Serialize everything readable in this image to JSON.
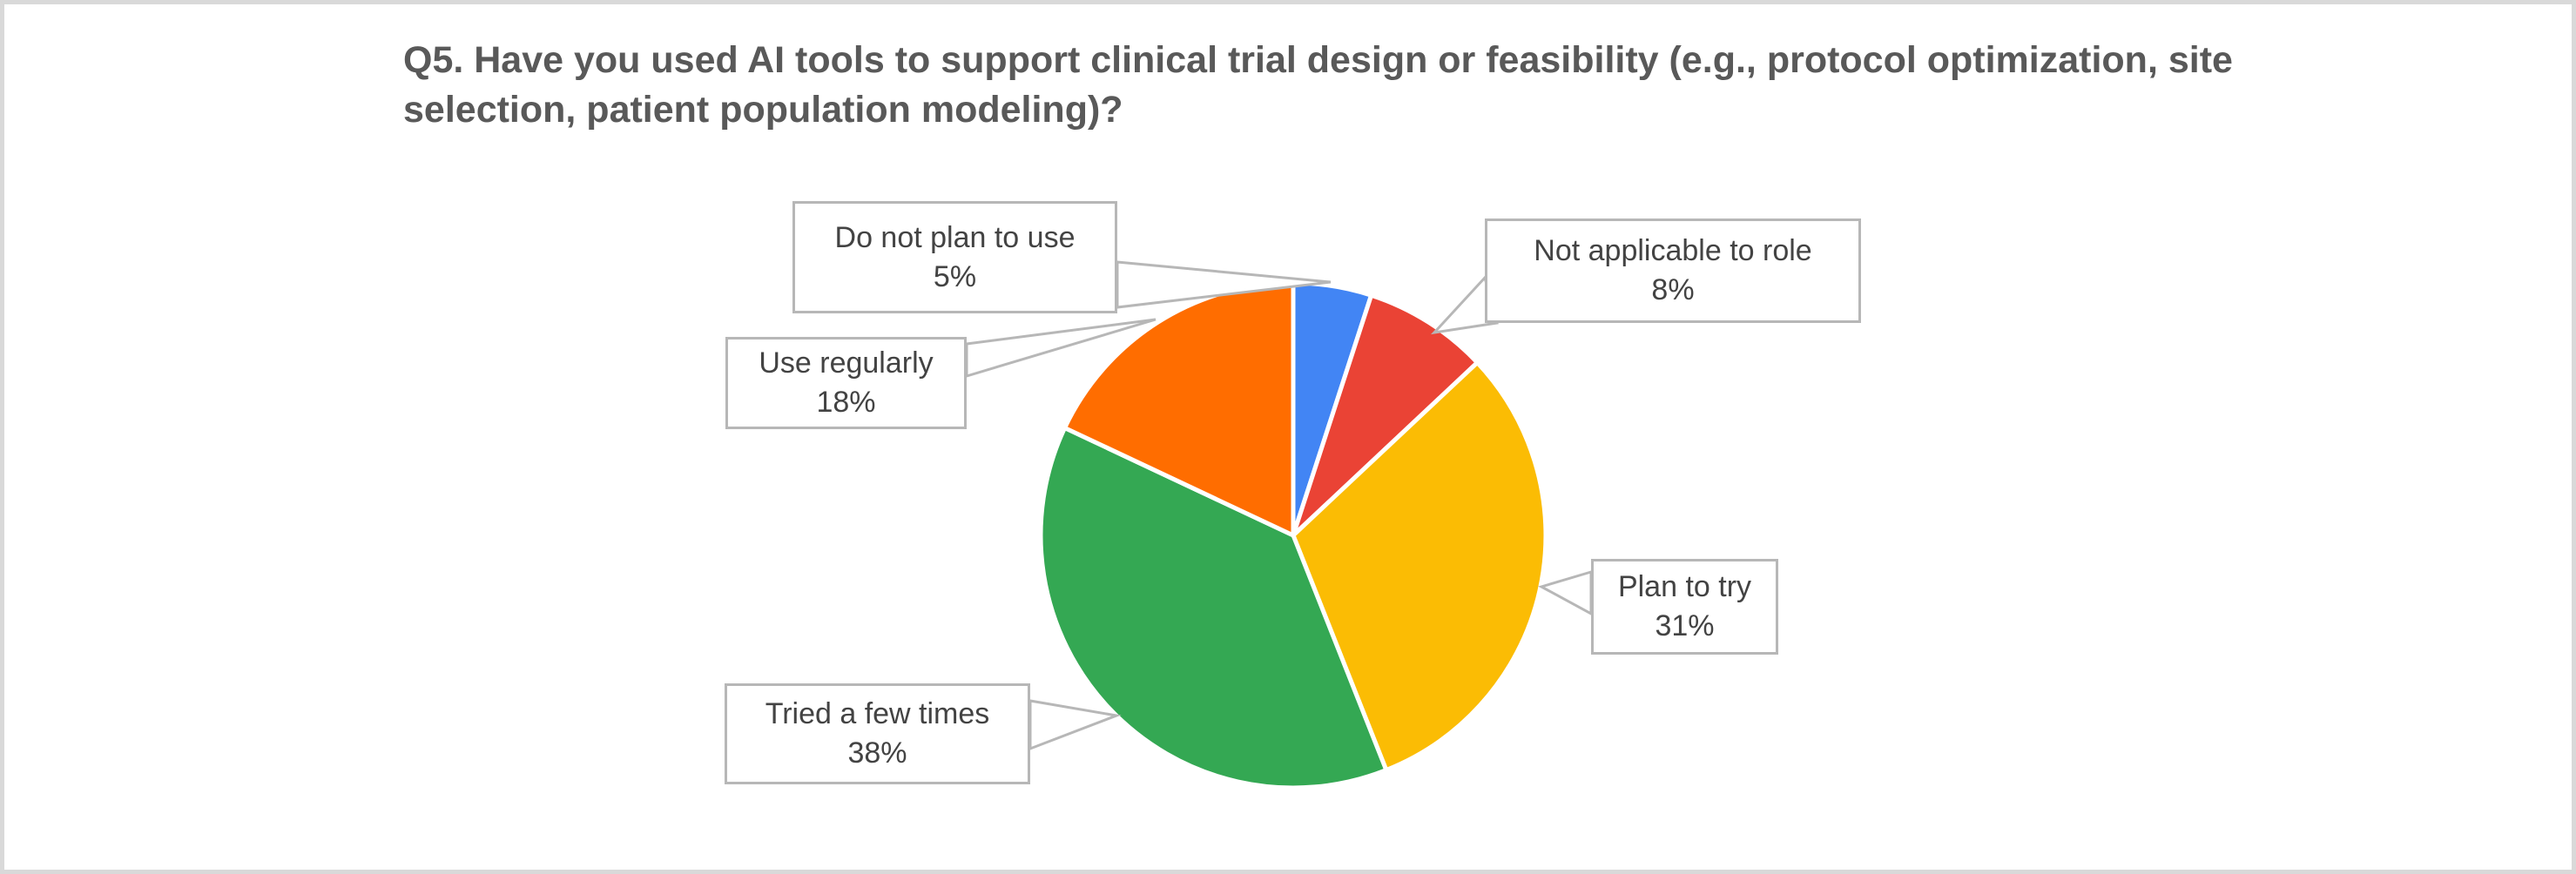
{
  "window": {
    "background_color": "#ffffff",
    "frame_border_color": "#d9d9d9"
  },
  "header": {
    "title": "Q5. Have you used AI tools to support clinical trial design or feasibility (e.g., protocol optimization, site selection, patient population modeling)?"
  },
  "chart_data": {
    "type": "pie",
    "title": "Q5. Have you used AI tools to support clinical trial design or feasibility (e.g., protocol optimization, site selection, patient population modeling)?",
    "start_angle_deg": 0,
    "direction": "clockwise",
    "label_style": "callout-boxes-with-leader-lines",
    "legend": "none",
    "slices": [
      {
        "label": "Do not plan to use",
        "value": 5,
        "pct_label": "5%",
        "color": "#4285F4"
      },
      {
        "label": "Not applicable to role",
        "value": 8,
        "pct_label": "8%",
        "color": "#EA4335"
      },
      {
        "label": "Plan to try",
        "value": 31,
        "pct_label": "31%",
        "color": "#FBBC04"
      },
      {
        "label": "Tried a few times",
        "value": 38,
        "pct_label": "38%",
        "color": "#34A853"
      },
      {
        "label": "Use regularly",
        "value": 18,
        "pct_label": "18%",
        "color": "#FF6D00"
      }
    ],
    "style": {
      "slice_gap_color": "#ffffff",
      "callout_border_color": "#b7b7b7",
      "callout_text_color": "#434343",
      "title_color": "#595959"
    }
  }
}
